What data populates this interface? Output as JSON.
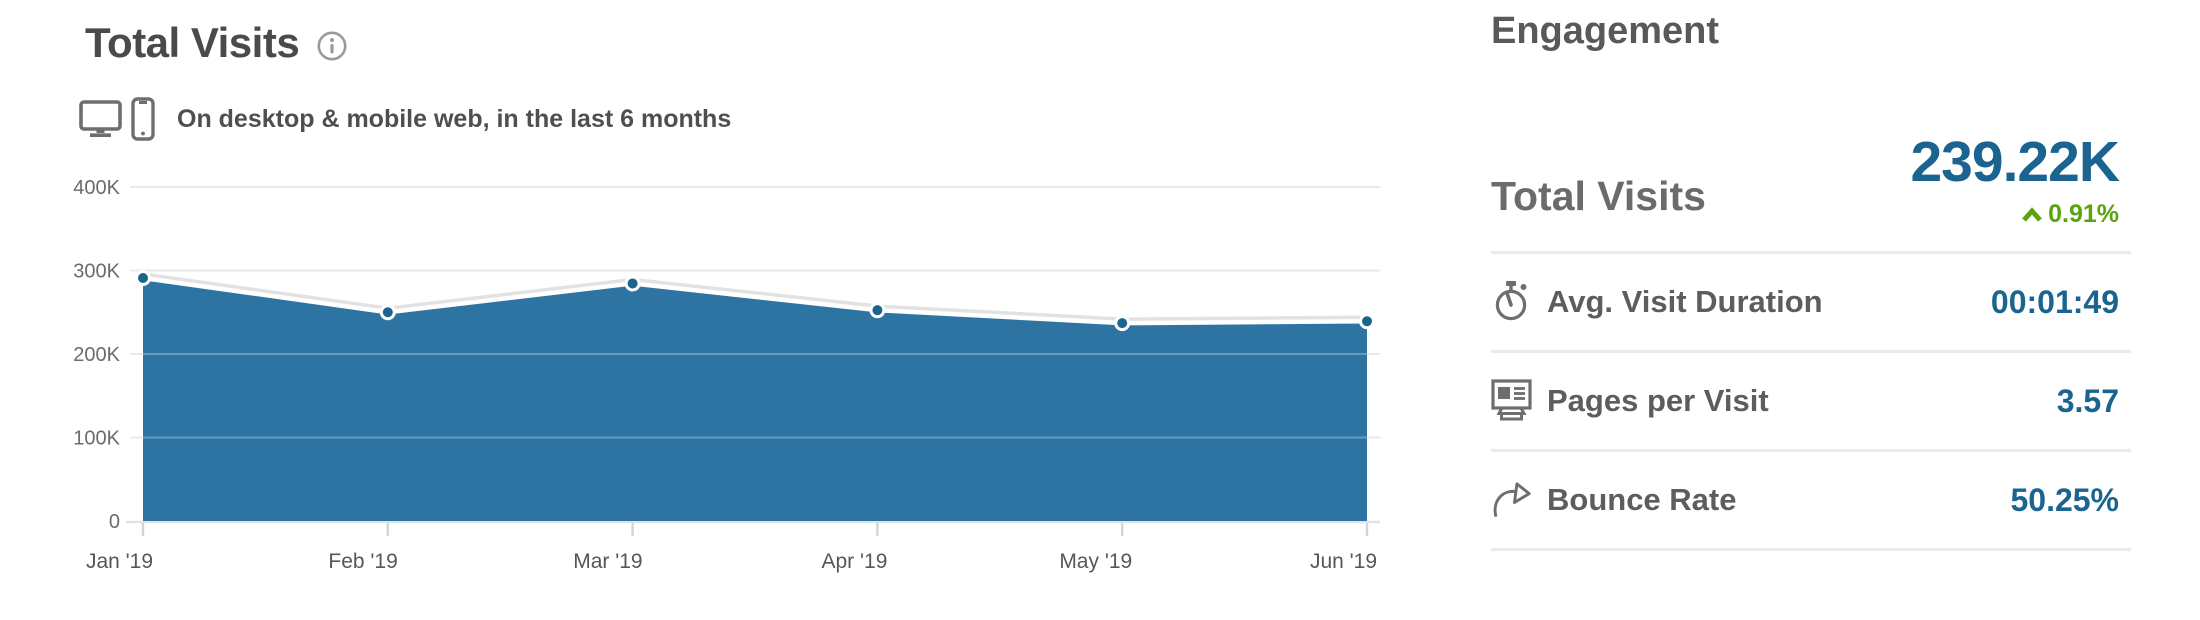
{
  "chart": {
    "title": "Total Visits",
    "subtitle": "On desktop & mobile web, in the last 6 months",
    "info_icon": "info-icon",
    "device_icons": [
      "desktop-icon",
      "mobile-icon"
    ]
  },
  "chart_data": {
    "type": "area",
    "title": "Total Visits",
    "subtitle": "On desktop & mobile web, in the last 6 months",
    "x": [
      "Jan '19",
      "Feb '19",
      "Mar '19",
      "Apr '19",
      "May '19",
      "Jun '19"
    ],
    "series": [
      {
        "name": "Total Visits",
        "values": [
          291000,
          250000,
          284500,
          252500,
          237000,
          239220
        ]
      }
    ],
    "ylim": [
      0,
      400000
    ],
    "yticks": {
      "values": [
        0,
        100000,
        200000,
        300000,
        400000
      ],
      "labels": [
        "0",
        "100K",
        "200K",
        "300K",
        "400K"
      ]
    },
    "grid": true,
    "legend": false,
    "colors": {
      "area": "#2e74a3",
      "line": "#ffffff",
      "line_shadow": "#e2e2e2",
      "point": "#1a648f",
      "point_ring": "#ffffff",
      "gridline": "#e7e9eb",
      "gridline_over_area": "rgba(255,255,255,0.28)",
      "axis_line": "#e0e3e5",
      "tick": "#c9d8e2",
      "axis_text": "#6b6b6b",
      "x_axis_text": "#575757"
    }
  },
  "engagement": {
    "title": "Engagement",
    "primary": {
      "label": "Total Visits",
      "value": "239.22K",
      "change": "0.91%",
      "direction": "up",
      "trend_icon": "caret-up-icon",
      "value_color": "#1a648f",
      "change_color": "#5aa50f"
    },
    "rows": [
      {
        "icon": "stopwatch-icon",
        "label": "Avg. Visit Duration",
        "value": "00:01:49"
      },
      {
        "icon": "pages-icon",
        "label": "Pages per Visit",
        "value": "3.57"
      },
      {
        "icon": "bounce-arrow-icon",
        "label": "Bounce Rate",
        "value": "50.25%"
      }
    ]
  }
}
